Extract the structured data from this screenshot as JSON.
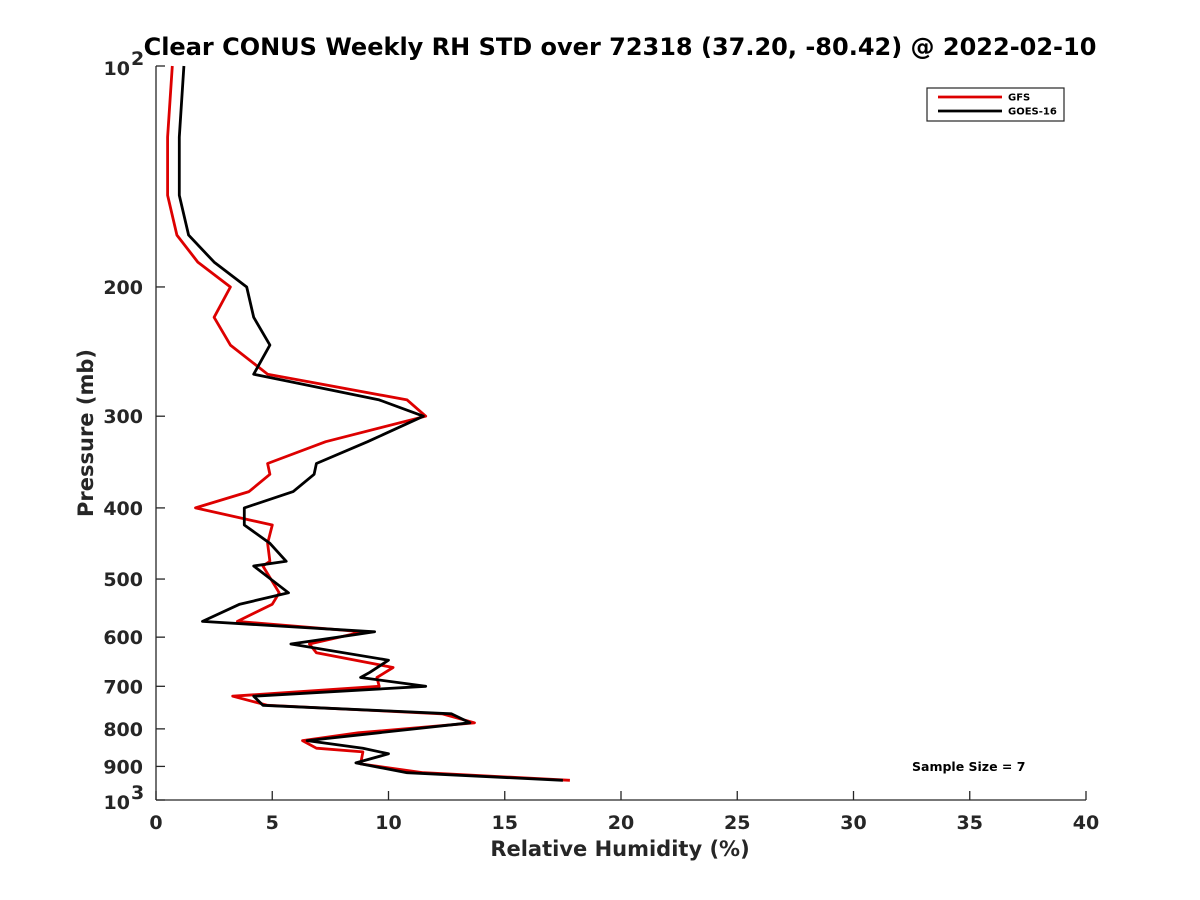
{
  "chart_data": {
    "type": "line",
    "title": "Clear CONUS Weekly RH STD over 72318 (37.20, -80.42) @ 2022-02-10",
    "xlabel": "Relative Humidity (%)",
    "ylabel": "Pressure (mb)",
    "xlim": [
      0,
      40
    ],
    "ylim": [
      100,
      1000
    ],
    "y_scale": "log",
    "y_reversed": true,
    "x_ticks": [
      "0",
      "5",
      "10",
      "15",
      "20",
      "25",
      "30",
      "35",
      "40"
    ],
    "y_ticks": [
      {
        "value": 100,
        "base": "10",
        "exp": "2"
      },
      {
        "value": 200,
        "label": "200"
      },
      {
        "value": 300,
        "label": "300"
      },
      {
        "value": 400,
        "label": "400"
      },
      {
        "value": 500,
        "label": "500"
      },
      {
        "value": 600,
        "label": "600"
      },
      {
        "value": 700,
        "label": "700"
      },
      {
        "value": 800,
        "label": "800"
      },
      {
        "value": 900,
        "label": "900"
      },
      {
        "value": 1000,
        "base": "10",
        "exp": "3"
      }
    ],
    "legend_position": "top-right",
    "grid": false,
    "series": [
      {
        "name": "GFS",
        "color": "#dd0000",
        "points": [
          [
            0.7,
            100
          ],
          [
            0.5,
            125
          ],
          [
            0.5,
            150
          ],
          [
            0.9,
            170
          ],
          [
            1.8,
            185
          ],
          [
            3.2,
            200
          ],
          [
            2.5,
            220
          ],
          [
            3.2,
            240
          ],
          [
            4.8,
            263
          ],
          [
            10.8,
            285
          ],
          [
            11.6,
            300
          ],
          [
            7.3,
            325
          ],
          [
            4.8,
            348
          ],
          [
            4.9,
            360
          ],
          [
            4.0,
            380
          ],
          [
            1.7,
            400
          ],
          [
            5.0,
            422
          ],
          [
            4.8,
            447
          ],
          [
            4.9,
            473
          ],
          [
            4.6,
            480
          ],
          [
            5.3,
            522
          ],
          [
            5.0,
            541
          ],
          [
            3.5,
            571
          ],
          [
            8.9,
            590
          ],
          [
            6.6,
            613
          ],
          [
            6.9,
            630
          ],
          [
            10.2,
            660
          ],
          [
            9.5,
            681
          ],
          [
            9.6,
            700
          ],
          [
            3.3,
            722
          ],
          [
            4.8,
            743
          ],
          [
            12.3,
            763
          ],
          [
            13.7,
            785
          ],
          [
            8.7,
            810
          ],
          [
            6.3,
            830
          ],
          [
            6.9,
            850
          ],
          [
            8.9,
            860
          ],
          [
            8.8,
            893
          ],
          [
            11.5,
            918
          ],
          [
            17.8,
            940
          ]
        ]
      },
      {
        "name": "GOES-16",
        "color": "#000000",
        "points": [
          [
            1.2,
            100
          ],
          [
            1.0,
            125
          ],
          [
            1.0,
            150
          ],
          [
            1.4,
            170
          ],
          [
            2.5,
            185
          ],
          [
            3.9,
            200
          ],
          [
            4.2,
            220
          ],
          [
            4.9,
            240
          ],
          [
            4.2,
            263
          ],
          [
            9.6,
            285
          ],
          [
            11.5,
            300
          ],
          [
            9.1,
            325
          ],
          [
            6.9,
            348
          ],
          [
            6.8,
            360
          ],
          [
            5.9,
            380
          ],
          [
            3.8,
            400
          ],
          [
            3.8,
            422
          ],
          [
            4.9,
            447
          ],
          [
            5.6,
            473
          ],
          [
            4.2,
            480
          ],
          [
            5.7,
            522
          ],
          [
            3.6,
            541
          ],
          [
            2.0,
            571
          ],
          [
            9.4,
            590
          ],
          [
            5.8,
            613
          ],
          [
            10.0,
            645
          ],
          [
            9.2,
            670
          ],
          [
            8.8,
            681
          ],
          [
            11.6,
            700
          ],
          [
            4.2,
            722
          ],
          [
            4.6,
            743
          ],
          [
            12.7,
            763
          ],
          [
            13.5,
            785
          ],
          [
            6.5,
            830
          ],
          [
            8.9,
            850
          ],
          [
            10.0,
            865
          ],
          [
            8.6,
            890
          ],
          [
            10.8,
            918
          ],
          [
            17.5,
            940
          ]
        ]
      }
    ],
    "annotation": "Sample Size = 7"
  }
}
